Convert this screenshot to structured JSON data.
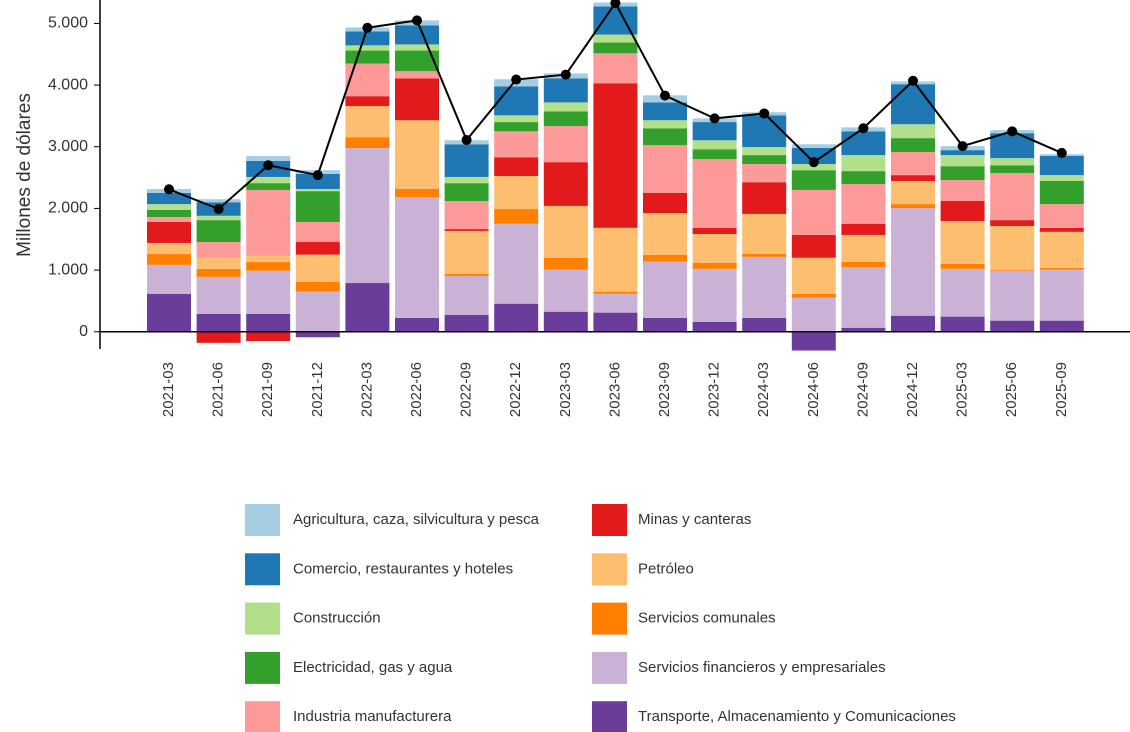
{
  "chart_data": {
    "type": "bar",
    "stacked": true,
    "y_label": "Millones de dólares",
    "categories": [
      "2021-03",
      "2021-06",
      "2021-09",
      "2021-12",
      "2022-03",
      "2022-06",
      "2022-09",
      "2022-12",
      "2023-03",
      "2023-06",
      "2023-09",
      "2023-12",
      "2024-03",
      "2024-06",
      "2024-09",
      "2024-12",
      "2025-03",
      "2025-06",
      "2025-09"
    ],
    "ylim": [
      -280,
      5380
    ],
    "yticks": [
      0,
      {
        "value": 1000,
        "label": "1.000"
      },
      {
        "value": 2000,
        "label": "2.000"
      },
      {
        "value": 3000,
        "label": "3.000"
      },
      {
        "value": 4000,
        "label": "4.000"
      },
      {
        "value": 5000,
        "label": "5.000"
      }
    ],
    "series": [
      {
        "name": "Agricultura, caza, silvicultura y pesca",
        "color": "#a6cee3",
        "values": [
          65,
          50,
          80,
          60,
          65,
          80,
          65,
          115,
          80,
          65,
          115,
          60,
          50,
          60,
          65,
          45,
          65,
          50,
          30
        ]
      },
      {
        "name": "Comercio, restaurantes y hoteles",
        "color": "#1f78b4",
        "values": [
          180,
          220,
          260,
          245,
          225,
          310,
          530,
          470,
          390,
          455,
          290,
          295,
          515,
          260,
          385,
          650,
          80,
          405,
          310
        ]
      },
      {
        "name": "Construcción",
        "color": "#b2df8a",
        "values": [
          95,
          70,
          100,
          35,
          85,
          100,
          100,
          110,
          145,
          130,
          130,
          145,
          130,
          100,
          260,
          225,
          180,
          115,
          95
        ]
      },
      {
        "name": "Electricidad, gas y agua",
        "color": "#33a02c",
        "values": [
          115,
          355,
          110,
          500,
          210,
          335,
          290,
          150,
          240,
          175,
          275,
          160,
          145,
          320,
          210,
          225,
          225,
          125,
          375
        ]
      },
      {
        "name": "Industria manufacturera",
        "color": "#fb9a99",
        "values": [
          80,
          255,
          1070,
          325,
          530,
          115,
          455,
          420,
          585,
          485,
          775,
          1115,
          295,
          730,
          645,
          375,
          340,
          765,
          385
        ]
      },
      {
        "name": "Minas y canteras",
        "color": "#e31a1c",
        "values": [
          340,
          -180,
          -150,
          205,
          160,
          680,
          30,
          305,
          710,
          2345,
          325,
          100,
          515,
          370,
          180,
          95,
          325,
          95,
          65
        ]
      },
      {
        "name": "Petróleo",
        "color": "#fdbf6f",
        "values": [
          180,
          180,
          100,
          440,
          505,
          1115,
          695,
          535,
          840,
          1035,
          680,
          470,
          650,
          585,
          435,
          375,
          695,
          710,
          585
        ]
      },
      {
        "name": "Servicios comunales",
        "color": "#ff7f00",
        "values": [
          175,
          130,
          140,
          160,
          175,
          130,
          35,
          240,
          195,
          35,
          110,
          95,
          45,
          65,
          85,
          65,
          80,
          15,
          30
        ]
      },
      {
        "name": "Servicios financieros y empresariales",
        "color": "#cab2d6",
        "values": [
          470,
          600,
          700,
          650,
          2190,
          1960,
          630,
          1295,
          680,
          305,
          910,
          860,
          990,
          550,
          985,
          1745,
          775,
          810,
          825
        ]
      },
      {
        "name": "Transporte, Almacenamiento y Comunicaciones",
        "color": "#6a3d9a",
        "values": [
          615,
          290,
          290,
          -90,
          790,
          225,
          275,
          455,
          325,
          310,
          225,
          160,
          225,
          -305,
          65,
          260,
          245,
          180,
          180
        ]
      }
    ],
    "line": {
      "color": "#000000",
      "values": [
        2310,
        1990,
        2700,
        2540,
        4930,
        5050,
        3110,
        4090,
        4170,
        5330,
        3830,
        3460,
        3540,
        2750,
        3300,
        4070,
        3010,
        3250,
        2900
      ]
    }
  }
}
